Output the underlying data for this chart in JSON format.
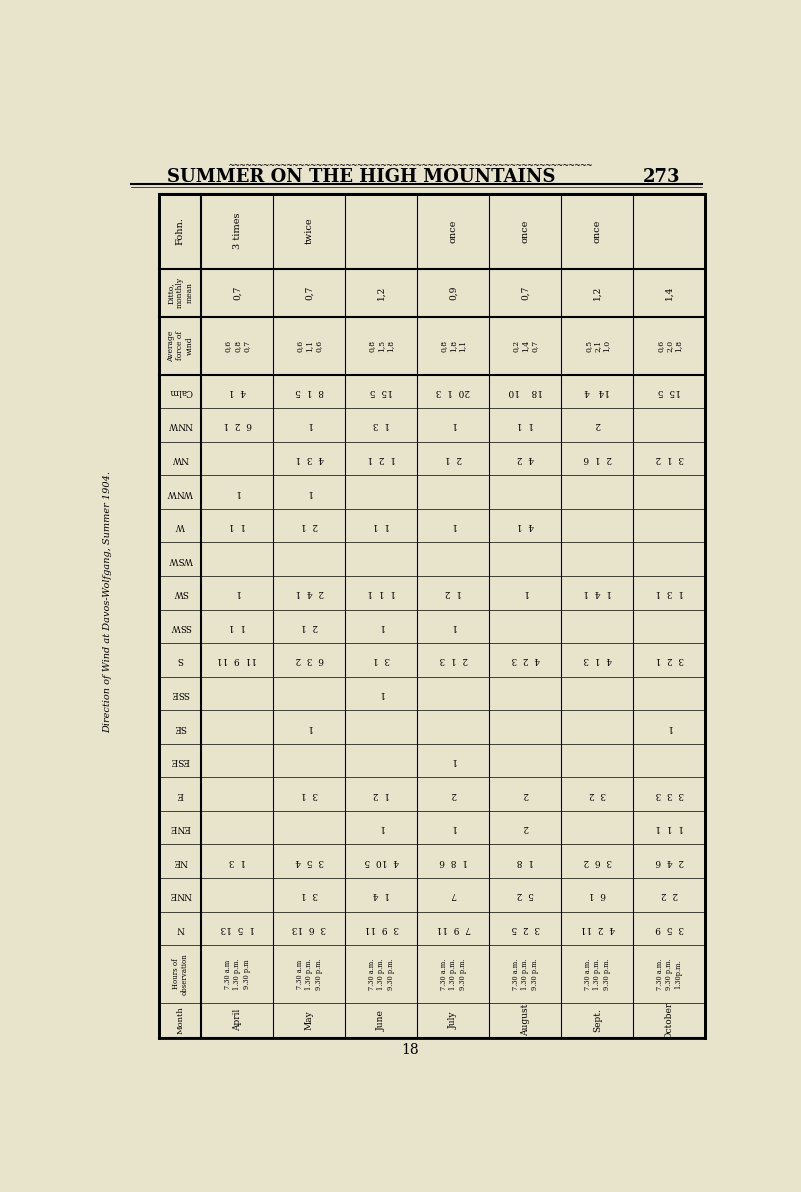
{
  "title": "SUMMER ON THE HIGH MOUNTAINS",
  "page_num": "273",
  "side_label": "Direction of Wind at Davos-Wolfgang, Summer 1904.",
  "bg_color": "#e8e4cc",
  "fohn_labels": [
    "Fohn.",
    "3 times",
    "twice",
    "",
    "once",
    "once",
    "once",
    ""
  ],
  "ditto_vals": [
    "0,7",
    "0,7",
    "1,2",
    "0,9",
    "0,7",
    "1,2",
    "1,4"
  ],
  "avg_vals": [
    "0,6\n0,8\n0,7",
    "0,6\n1,1\n0,6",
    "0,8\n1,5\n1,8",
    "0,8\n1,8\n1,1",
    "0,2\n1,4\n0,7",
    "0,5\n2,1\n1,0",
    "0,6\n2,0\n1,8"
  ],
  "directions": [
    "Calm",
    "NNW",
    "NW",
    "WNW",
    "W",
    "WSW",
    "SW",
    "SSW",
    "S",
    "SSE",
    "SE",
    "ESE",
    "E",
    "ENE",
    "NE",
    "NNE",
    "N"
  ],
  "dir_data": [
    [
      "4  1",
      "8  1  5",
      "15  5",
      "20  1  3",
      "18    10",
      "14   4",
      "15  5"
    ],
    [
      "6  2  1",
      "1",
      "1  3",
      "1",
      "1  1",
      "2",
      ""
    ],
    [
      "",
      "4  3  1",
      "1  2  1",
      "2  1",
      "4  2",
      "2  1  6",
      "3  1  2"
    ],
    [
      "1",
      "1",
      "",
      "",
      "",
      "",
      ""
    ],
    [
      "1  1",
      "2  1",
      "1  1",
      "1",
      "4  1",
      "",
      ""
    ],
    [
      "",
      "",
      "",
      "",
      "",
      "",
      ""
    ],
    [
      "1",
      "2  4  1",
      "1  1  1",
      "1  2",
      "1",
      "1  4  1",
      "1  3  1"
    ],
    [
      "1  1",
      "2  1",
      "1",
      "1",
      "",
      "",
      ""
    ],
    [
      "11  9  11",
      "6  3  2",
      "3  1",
      "2  1  3",
      "4  2  3",
      "4  1  3",
      "3  2  1"
    ],
    [
      "",
      "",
      "1",
      "",
      "",
      "",
      ""
    ],
    [
      "",
      "1",
      "",
      "",
      "",
      "",
      "1"
    ],
    [
      "",
      "",
      "",
      "1",
      "",
      "",
      ""
    ],
    [
      "",
      "3  1",
      "1  2",
      "2",
      "2",
      "3  2",
      "3  3  3"
    ],
    [
      "",
      "",
      "1",
      "1",
      "2",
      "",
      "1  1  1"
    ],
    [
      "1  3",
      "3  5  4",
      "4  10  5",
      "1  8  6",
      "1  8",
      "3  6  2",
      "2  4  6"
    ],
    [
      "",
      "3  1",
      "1  4",
      "7",
      "5  2",
      "6  1",
      "2  2"
    ],
    [
      "1  5  13",
      "3  6  13",
      "3  9  11",
      "7  9  11",
      "3  2  5",
      "4  2  11",
      "3  5  9"
    ]
  ],
  "months": [
    "April",
    "May",
    "June",
    "July",
    "August",
    "Sept.",
    "October"
  ],
  "obs_hours": [
    [
      "7.30 a.m",
      "1.30 p.m.",
      "9.30 p.m"
    ],
    [
      "7.30 a.m",
      "1.30 p.m.",
      "9.30 p.m."
    ],
    [
      "7.30 a.m.",
      "1.30 p.m.",
      "9.30 p.m."
    ],
    [
      "7.30 a.m.",
      "1.30 p.m.",
      "9.30 p.m."
    ],
    [
      "7.30 a.m.",
      "1.30 p.m.",
      "9.30 p.m."
    ],
    [
      "7.30 a.m.",
      "1.30 p.m.",
      "9.30 p.m."
    ],
    [
      "7.30 a.m.",
      "9.30 p.m.",
      "1.30p.m."
    ]
  ]
}
